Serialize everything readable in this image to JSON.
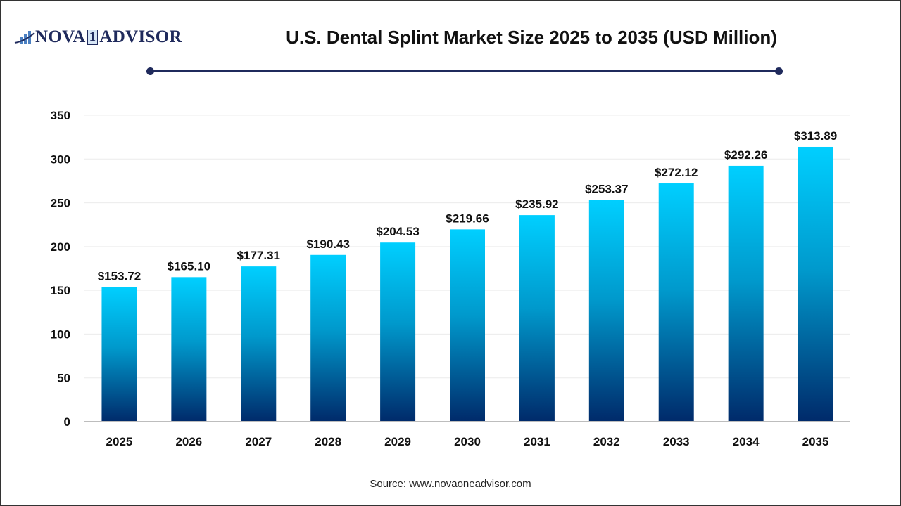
{
  "brand": {
    "logo_text_left": "NOVA",
    "logo_text_one": "1",
    "logo_text_right": "ADVISOR"
  },
  "title": "U.S. Dental Splint Market Size 2025 to 2035 (USD Million)",
  "source": "Source: www.novaoneadvisor.com",
  "colors": {
    "bar_top": "#00CFFF",
    "bar_bottom": "#002A6A",
    "accent": "#1f2a5c"
  },
  "chart_data": {
    "type": "bar",
    "title": "U.S. Dental Splint Market Size 2025 to 2035 (USD Million)",
    "categories": [
      "2025",
      "2026",
      "2027",
      "2028",
      "2029",
      "2030",
      "2031",
      "2032",
      "2033",
      "2034",
      "2035"
    ],
    "values": [
      153.72,
      165.1,
      177.31,
      190.43,
      204.53,
      219.66,
      235.92,
      253.37,
      272.12,
      292.26,
      313.89
    ],
    "data_labels": [
      "$153.72",
      "$165.10",
      "$177.31",
      "$190.43",
      "$204.53",
      "$219.66",
      "$235.92",
      "$253.37",
      "$272.12",
      "$292.26",
      "$313.89"
    ],
    "ylim": [
      0,
      350
    ],
    "yticks": [
      0,
      50,
      100,
      150,
      200,
      250,
      300,
      350
    ],
    "grid": true,
    "xlabel": "",
    "ylabel": ""
  }
}
